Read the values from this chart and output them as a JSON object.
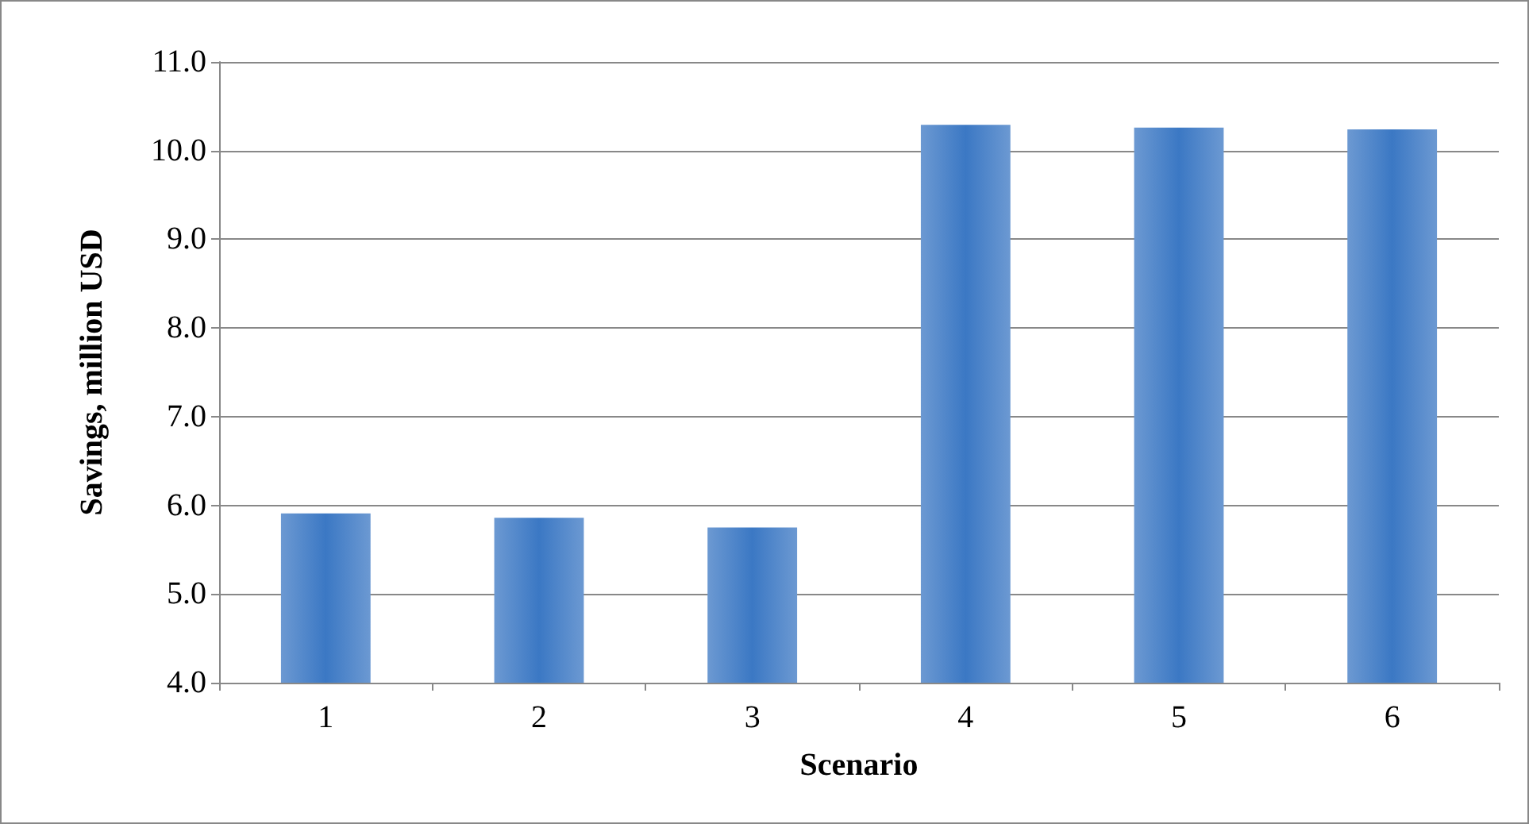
{
  "chart_data": {
    "type": "bar",
    "xlabel": "Scenario",
    "ylabel": "Savings, million USD",
    "categories": [
      "1",
      "2",
      "3",
      "4",
      "5",
      "6"
    ],
    "values": [
      5.91,
      5.86,
      5.75,
      10.29,
      10.26,
      10.24
    ],
    "color": "#3b78c4",
    "ylim": [
      4,
      11
    ],
    "yticks": [
      {
        "value": 4,
        "label": "4.0"
      },
      {
        "value": 5,
        "label": "5.0"
      },
      {
        "value": 6,
        "label": "6.0"
      },
      {
        "value": 7,
        "label": "7.0"
      },
      {
        "value": 8,
        "label": "8.0"
      },
      {
        "value": 9,
        "label": "9.0"
      },
      {
        "value": 10,
        "label": "10.0"
      },
      {
        "value": 11,
        "label": "11.0"
      }
    ],
    "grid": "y"
  }
}
